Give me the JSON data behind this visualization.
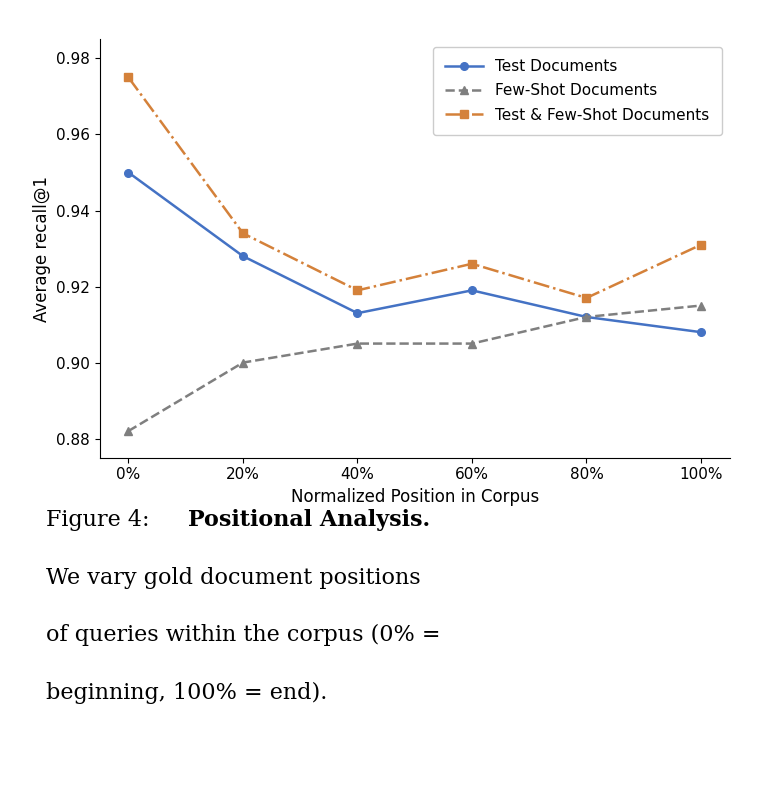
{
  "x_positions": [
    0,
    20,
    40,
    60,
    80,
    100
  ],
  "x_labels": [
    "0%",
    "20%",
    "40%",
    "60%",
    "80%",
    "100%"
  ],
  "test_docs": [
    0.95,
    0.928,
    0.913,
    0.919,
    0.912,
    0.908
  ],
  "few_shot_docs": [
    0.882,
    0.9,
    0.905,
    0.905,
    0.912,
    0.915
  ],
  "test_few_shot_docs": [
    0.975,
    0.934,
    0.919,
    0.926,
    0.917,
    0.931
  ],
  "test_docs_color": "#4472c4",
  "few_shot_docs_color": "#7f7f7f",
  "test_few_shot_docs_color": "#d4813a",
  "ylabel": "Average recall@1",
  "xlabel": "Normalized Position in Corpus",
  "ylim_min": 0.875,
  "ylim_max": 0.985,
  "yticks": [
    0.88,
    0.9,
    0.92,
    0.94,
    0.96,
    0.98
  ],
  "legend_labels": [
    "Test Documents",
    "Few-Shot Documents",
    "Test & Few-Shot Documents"
  ],
  "fig_width": 7.68,
  "fig_height": 7.89,
  "caption_figure": "Figure 4:",
  "caption_bold": "Positional Analysis.",
  "caption_rest_line1": "We vary gold document positions",
  "caption_rest_line2": "of queries within the corpus (0% =",
  "caption_rest_line3": "beginning, 100% = end)."
}
